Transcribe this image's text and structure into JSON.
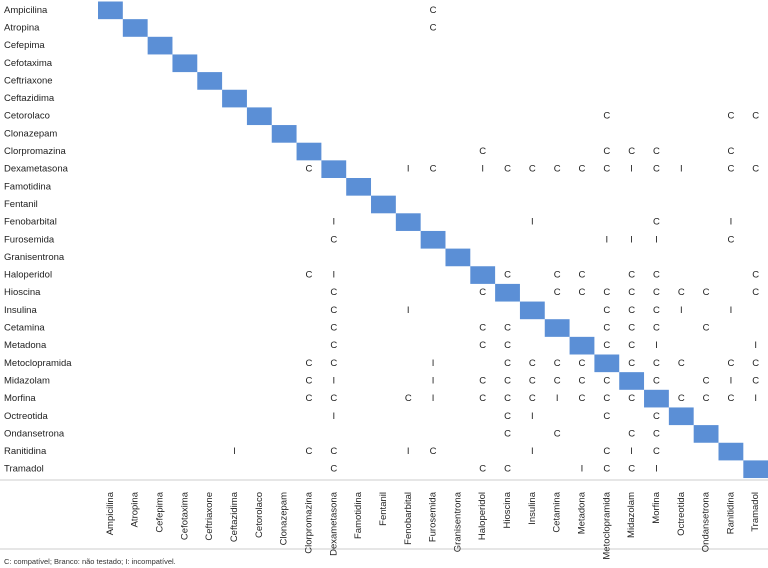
{
  "table": {
    "columns": [
      "Ampicilina",
      "Atropina",
      "Cefepima",
      "Cefotaxima",
      "Ceftriaxone",
      "Ceftazidima",
      "Cetorolaco",
      "Clonazepam",
      "Clorpromazina",
      "Dexametasona",
      "Famotidina",
      "Fentanil",
      "Fenobarbital",
      "Furosemida",
      "Granisentrona",
      "Haloperidol",
      "Hioscina",
      "Insulina",
      "Cetamina",
      "Metadona",
      "Metoclopramida",
      "Midazolam",
      "Morfina",
      "Octreotida",
      "Ondansetrona",
      "Ranitidina",
      "Tramadol"
    ],
    "rows": [
      {
        "label": "Ampicilina",
        "cells": [
          null,
          null,
          null,
          null,
          null,
          null,
          null,
          null,
          null,
          null,
          null,
          null,
          null,
          "C",
          null,
          null,
          null,
          null,
          null,
          null,
          null,
          null,
          null,
          null,
          null,
          null,
          null
        ]
      },
      {
        "label": "Atropina",
        "cells": [
          null,
          null,
          null,
          null,
          null,
          null,
          null,
          null,
          null,
          null,
          null,
          null,
          null,
          "C",
          null,
          null,
          null,
          null,
          null,
          null,
          null,
          null,
          null,
          null,
          null,
          null,
          null
        ]
      },
      {
        "label": "Cefepima",
        "cells": [
          null,
          null,
          null,
          null,
          null,
          null,
          null,
          null,
          null,
          null,
          null,
          null,
          null,
          null,
          null,
          null,
          null,
          null,
          null,
          null,
          null,
          null,
          null,
          null,
          null,
          null,
          null
        ]
      },
      {
        "label": "Cefotaxima",
        "cells": [
          null,
          null,
          null,
          null,
          null,
          null,
          null,
          null,
          null,
          null,
          null,
          null,
          null,
          null,
          null,
          null,
          null,
          null,
          null,
          null,
          null,
          null,
          null,
          null,
          null,
          null,
          null
        ]
      },
      {
        "label": "Ceftriaxone",
        "cells": [
          null,
          null,
          null,
          null,
          null,
          null,
          null,
          null,
          null,
          null,
          null,
          null,
          null,
          null,
          null,
          null,
          null,
          null,
          null,
          null,
          null,
          null,
          null,
          null,
          null,
          null,
          null
        ]
      },
      {
        "label": "Ceftazidima",
        "cells": [
          null,
          null,
          null,
          null,
          null,
          null,
          null,
          null,
          null,
          null,
          null,
          null,
          null,
          null,
          null,
          null,
          null,
          null,
          null,
          null,
          null,
          null,
          null,
          null,
          null,
          null,
          null
        ]
      },
      {
        "label": "Cetorolaco",
        "cells": [
          null,
          null,
          null,
          null,
          null,
          null,
          null,
          null,
          null,
          null,
          null,
          null,
          null,
          null,
          null,
          null,
          null,
          null,
          null,
          null,
          "C",
          null,
          null,
          null,
          null,
          "C",
          "C"
        ]
      },
      {
        "label": "Clonazepam",
        "cells": [
          null,
          null,
          null,
          null,
          null,
          null,
          null,
          null,
          null,
          null,
          null,
          null,
          null,
          null,
          null,
          null,
          null,
          null,
          null,
          null,
          null,
          null,
          null,
          null,
          null,
          null,
          null
        ]
      },
      {
        "label": "Clorpromazina",
        "cells": [
          null,
          null,
          null,
          null,
          null,
          null,
          null,
          null,
          null,
          null,
          null,
          null,
          null,
          null,
          null,
          "C",
          null,
          null,
          null,
          null,
          "C",
          "C",
          "C",
          null,
          null,
          "C",
          null
        ]
      },
      {
        "label": "Dexametasona",
        "cells": [
          null,
          null,
          null,
          null,
          null,
          null,
          null,
          null,
          "C",
          null,
          null,
          null,
          "I",
          "C",
          null,
          "I",
          "C",
          "C",
          "C",
          "C",
          "C",
          "I",
          "C",
          "I",
          null,
          "C",
          "C"
        ]
      },
      {
        "label": "Famotidina",
        "cells": [
          null,
          null,
          null,
          null,
          null,
          null,
          null,
          null,
          null,
          null,
          null,
          null,
          null,
          null,
          null,
          null,
          null,
          null,
          null,
          null,
          null,
          null,
          null,
          null,
          null,
          null,
          null
        ]
      },
      {
        "label": "Fentanil",
        "cells": [
          null,
          null,
          null,
          null,
          null,
          null,
          null,
          null,
          null,
          null,
          null,
          null,
          null,
          null,
          null,
          null,
          null,
          null,
          null,
          null,
          null,
          null,
          null,
          null,
          null,
          null,
          null
        ]
      },
      {
        "label": "Fenobarbital",
        "cells": [
          null,
          null,
          null,
          null,
          null,
          null,
          null,
          null,
          null,
          "I",
          null,
          null,
          null,
          null,
          null,
          null,
          null,
          "I",
          null,
          null,
          null,
          null,
          "C",
          null,
          null,
          "I",
          null
        ]
      },
      {
        "label": "Furosemida",
        "cells": [
          null,
          null,
          null,
          null,
          null,
          null,
          null,
          null,
          null,
          "C",
          null,
          null,
          null,
          null,
          null,
          null,
          null,
          null,
          null,
          null,
          "I",
          "I",
          "I",
          null,
          null,
          "C",
          null
        ]
      },
      {
        "label": "Granisentrona",
        "cells": [
          null,
          null,
          null,
          null,
          null,
          null,
          null,
          null,
          null,
          null,
          null,
          null,
          null,
          null,
          null,
          null,
          null,
          null,
          null,
          null,
          null,
          null,
          null,
          null,
          null,
          null,
          null
        ]
      },
      {
        "label": "Haloperidol",
        "cells": [
          null,
          null,
          null,
          null,
          null,
          null,
          null,
          null,
          "C",
          "I",
          null,
          null,
          null,
          null,
          null,
          null,
          "C",
          null,
          "C",
          "C",
          null,
          "C",
          "C",
          null,
          null,
          null,
          "C"
        ]
      },
      {
        "label": "Hioscina",
        "cells": [
          null,
          null,
          null,
          null,
          null,
          null,
          null,
          null,
          null,
          "C",
          null,
          null,
          null,
          null,
          null,
          "C",
          null,
          null,
          "C",
          "C",
          "C",
          "C",
          "C",
          "C",
          "C",
          null,
          "C"
        ]
      },
      {
        "label": "Insulina",
        "cells": [
          null,
          null,
          null,
          null,
          null,
          null,
          null,
          null,
          null,
          "C",
          null,
          null,
          "I",
          null,
          null,
          null,
          null,
          null,
          null,
          null,
          "C",
          "C",
          "C",
          "I",
          null,
          "I",
          null
        ]
      },
      {
        "label": "Cetamina",
        "cells": [
          null,
          null,
          null,
          null,
          null,
          null,
          null,
          null,
          null,
          "C",
          null,
          null,
          null,
          null,
          null,
          "C",
          "C",
          null,
          null,
          null,
          "C",
          "C",
          "C",
          null,
          "C",
          null,
          null
        ]
      },
      {
        "label": "Metadona",
        "cells": [
          null,
          null,
          null,
          null,
          null,
          null,
          null,
          null,
          null,
          "C",
          null,
          null,
          null,
          null,
          null,
          "C",
          "C",
          null,
          null,
          null,
          "C",
          "C",
          "I",
          null,
          null,
          null,
          "I"
        ]
      },
      {
        "label": "Metoclopramida",
        "cells": [
          null,
          null,
          null,
          null,
          null,
          null,
          null,
          null,
          "C",
          "C",
          null,
          null,
          null,
          "I",
          null,
          null,
          "C",
          "C",
          "C",
          "C",
          null,
          "C",
          "C",
          "C",
          null,
          "C",
          "C"
        ]
      },
      {
        "label": "Midazolam",
        "cells": [
          null,
          null,
          null,
          null,
          null,
          null,
          null,
          null,
          "C",
          "I",
          null,
          null,
          null,
          "I",
          null,
          "C",
          "C",
          "C",
          "C",
          "C",
          "C",
          null,
          "C",
          null,
          "C",
          "I",
          "C"
        ]
      },
      {
        "label": "Morfina",
        "cells": [
          null,
          null,
          null,
          null,
          null,
          null,
          null,
          null,
          "C",
          "C",
          null,
          null,
          "C",
          "I",
          null,
          "C",
          "C",
          "C",
          "I",
          "C",
          "C",
          "C",
          null,
          "C",
          "C",
          "C",
          "I"
        ]
      },
      {
        "label": "Octreotida",
        "cells": [
          null,
          null,
          null,
          null,
          null,
          null,
          null,
          null,
          null,
          "I",
          null,
          null,
          null,
          null,
          null,
          null,
          "C",
          "I",
          null,
          null,
          "C",
          null,
          "C",
          null,
          null,
          null,
          null
        ]
      },
      {
        "label": "Ondansetrona",
        "cells": [
          null,
          null,
          null,
          null,
          null,
          null,
          null,
          null,
          null,
          null,
          null,
          null,
          null,
          null,
          null,
          null,
          "C",
          null,
          "C",
          null,
          null,
          "C",
          "C",
          null,
          null,
          null,
          null
        ]
      },
      {
        "label": "Ranitidina",
        "cells": [
          null,
          null,
          null,
          null,
          null,
          "I",
          null,
          null,
          "C",
          "C",
          null,
          null,
          "I",
          "C",
          null,
          null,
          null,
          "I",
          null,
          null,
          "C",
          "I",
          "C",
          null,
          null,
          null,
          null
        ]
      },
      {
        "label": "Tramadol",
        "cells": [
          null,
          null,
          null,
          null,
          null,
          null,
          null,
          null,
          null,
          "C",
          null,
          null,
          null,
          null,
          null,
          "C",
          "C",
          null,
          null,
          "I",
          "C",
          "C",
          "I",
          null,
          null,
          null,
          null
        ]
      }
    ],
    "footnote": "C: compatível; Branco: não testado; I: incompatível."
  }
}
